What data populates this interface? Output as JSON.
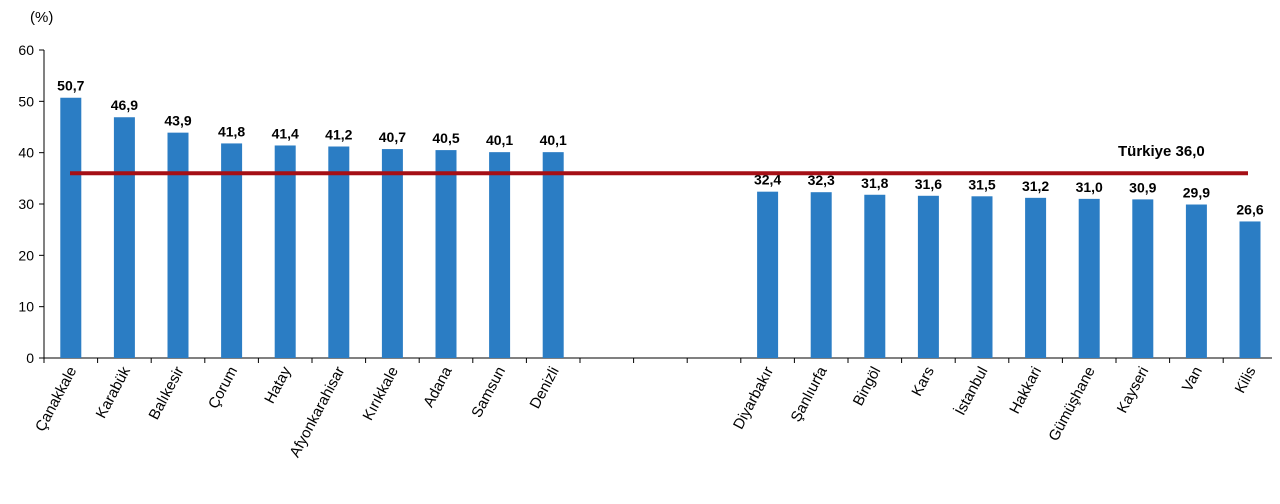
{
  "chart_data": {
    "type": "bar",
    "unit_label": "(%)",
    "ylim": [
      0,
      60
    ],
    "y_ticks": [
      0,
      10,
      20,
      30,
      40,
      50,
      60
    ],
    "bar_color": "#2b7dc4",
    "reference_line": {
      "label": "Türkiye",
      "value": 36.0,
      "value_label": "36,0",
      "color": "#a50f15"
    },
    "groups": [
      {
        "categories": [
          "Çanakkale",
          "Karabük",
          "Balıkesir",
          "Çorum",
          "Hatay",
          "Afyonkarahisar",
          "Kırıkkale",
          "Adana",
          "Samsun",
          "Denizli"
        ],
        "values": [
          50.7,
          46.9,
          43.9,
          41.8,
          41.4,
          41.2,
          40.7,
          40.5,
          40.1,
          40.1
        ],
        "value_labels": [
          "50,7",
          "46,9",
          "43,9",
          "41,8",
          "41,4",
          "41,2",
          "40,7",
          "40,5",
          "40,1",
          "40,1"
        ]
      },
      {
        "categories": [
          "Diyarbakır",
          "Şanlıurfa",
          "Bingöl",
          "Kars",
          "İstanbul",
          "Hakkari",
          "Gümüşhane",
          "Kayseri",
          "Van",
          "Kilis"
        ],
        "values": [
          32.4,
          32.3,
          31.8,
          31.6,
          31.5,
          31.2,
          31.0,
          30.9,
          29.9,
          26.6
        ],
        "value_labels": [
          "32,4",
          "32,3",
          "31,8",
          "31,6",
          "31,5",
          "31,2",
          "31,0",
          "30,9",
          "29,9",
          "26,6"
        ]
      }
    ]
  }
}
